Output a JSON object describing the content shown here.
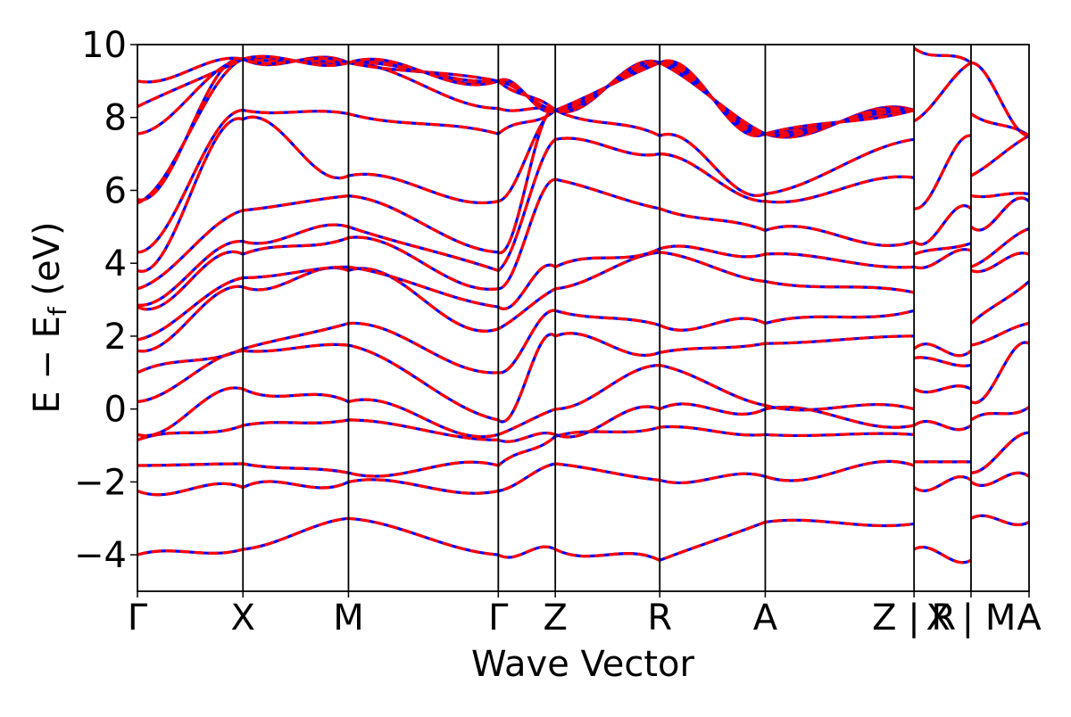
{
  "chart_data": {
    "type": "line",
    "title": "",
    "xlabel": "Wave Vector",
    "ylabel": "E − E",
    "ylabel_sub": "f",
    "ylabel_unit": " (eV)",
    "ylim": [
      -5,
      10
    ],
    "yticks": [
      -4,
      -2,
      0,
      2,
      4,
      6,
      8,
      10
    ],
    "ytick_labels": [
      "−4",
      "−2",
      "0",
      "2",
      "4",
      "6",
      "8",
      "10"
    ],
    "x_range": [
      0,
      8.45
    ],
    "kpath": [
      {
        "label": "Γ",
        "x": 0.0
      },
      {
        "label": "X",
        "x": 1.0
      },
      {
        "label": "M",
        "x": 2.0
      },
      {
        "label": "Γ",
        "x": 3.42
      },
      {
        "label": "Z",
        "x": 3.96
      },
      {
        "label": "R",
        "x": 4.95
      },
      {
        "label": "A",
        "x": 5.95
      },
      {
        "label": "Z | R",
        "x": 7.36
      },
      {
        "label": "X | M",
        "x": 7.9
      },
      {
        "label": "A",
        "x": 8.45
      }
    ],
    "legend": "none",
    "grid": false,
    "series": [
      {
        "style": "solid",
        "color": "#0000ff"
      },
      {
        "style": "dashed",
        "color": "#ff0000"
      }
    ],
    "band_energies_at_kpoints": {
      "Gamma": [
        -4.0,
        -2.25,
        -1.55,
        -0.85,
        -0.7,
        0.2,
        1.0,
        1.6,
        1.9,
        2.8,
        2.85,
        3.3,
        3.8,
        4.3,
        5.65,
        5.75,
        7.55,
        8.3,
        9.0
      ],
      "X": [
        -3.85,
        -2.15,
        -1.5,
        -0.45,
        0.55,
        1.6,
        1.65,
        3.35,
        3.6,
        4.25,
        4.6,
        5.45,
        7.95,
        8.2,
        9.6
      ],
      "M": [
        -3.0,
        -2.0,
        -1.75,
        -0.3,
        0.2,
        1.75,
        2.35,
        3.8,
        3.9,
        4.7,
        5.0,
        5.85,
        6.4,
        8.1,
        9.5
      ],
      "Gamma2": [
        -4.0,
        -2.25,
        -1.55,
        -0.85,
        -0.7,
        -0.3,
        1.0,
        2.2,
        2.8,
        3.3,
        3.8,
        4.3,
        5.7,
        7.55,
        8.25,
        9.0
      ],
      "Z": [
        -3.85,
        -1.5,
        -0.75,
        -0.7,
        0.0,
        2.0,
        2.7,
        3.3,
        3.9,
        6.3,
        7.4,
        8.2
      ],
      "R": [
        -4.15,
        -1.95,
        -0.5,
        0.0,
        1.2,
        1.55,
        2.3,
        4.3,
        4.4,
        5.5,
        7.0,
        7.5,
        9.5
      ],
      "A": [
        -3.1,
        -1.85,
        -0.7,
        0.0,
        0.1,
        1.8,
        2.35,
        3.5,
        4.25,
        4.9,
        5.7,
        5.9,
        7.55
      ],
      "Z2": [
        -3.15,
        -1.55,
        -0.7,
        -0.45,
        0.0,
        2.0,
        2.7,
        3.2,
        3.9,
        4.6,
        6.35,
        7.4,
        8.2
      ],
      "R2": [
        -3.85,
        -2.15,
        -1.45,
        -0.45,
        0.55,
        1.4,
        1.65,
        3.9,
        4.25,
        4.6,
        5.5,
        7.9,
        9.9
      ],
      "X2": [
        -4.15,
        -1.95,
        -1.45,
        -0.45,
        0.55,
        1.2,
        1.6,
        4.35,
        4.55,
        5.5,
        7.5,
        9.5
      ],
      "M2": [
        -3.0,
        -2.0,
        -1.75,
        -0.3,
        0.2,
        1.75,
        2.35,
        3.8,
        3.9,
        5.0,
        5.85,
        6.4,
        8.1,
        9.5
      ],
      "A2": [
        -3.1,
        -1.85,
        -0.65,
        0.05,
        1.8,
        2.35,
        3.5,
        4.25,
        4.95,
        5.7,
        5.9,
        7.5
      ]
    }
  }
}
